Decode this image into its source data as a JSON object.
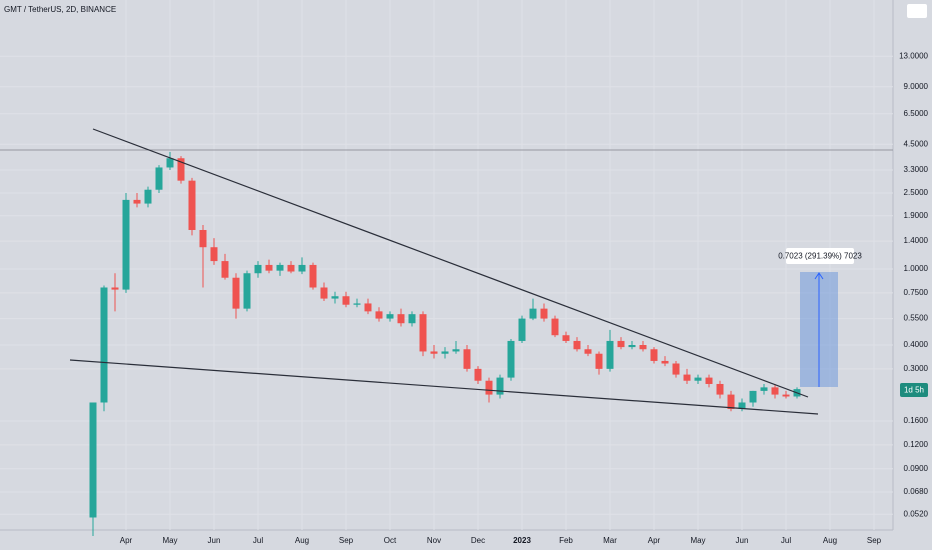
{
  "chart_data": {
    "type": "candlestick",
    "title": "GMT / TetherUS, 2D, BINANCE",
    "log_scale": true,
    "grid": true,
    "up_color": "#26a69a",
    "down_color": "#ef5350",
    "ylim": [
      0.043,
      25.6
    ],
    "yticks": [
      {
        "value": 13,
        "label": "13.0000"
      },
      {
        "value": 9,
        "label": "9.0000"
      },
      {
        "value": 6.5,
        "label": "6.5000"
      },
      {
        "value": 4.5,
        "label": "4.5000"
      },
      {
        "value": 3.3,
        "label": "3.3000"
      },
      {
        "value": 2.5,
        "label": "2.5000"
      },
      {
        "value": 1.9,
        "label": "1.9000"
      },
      {
        "value": 1.4,
        "label": "1.4000"
      },
      {
        "value": 1,
        "label": "1.0000"
      },
      {
        "value": 0.75,
        "label": "0.7500"
      },
      {
        "value": 0.55,
        "label": "0.5500"
      },
      {
        "value": 0.4,
        "label": "0.4000"
      },
      {
        "value": 0.3,
        "label": "0.3000"
      },
      {
        "value": 0.16,
        "label": "0.1600"
      },
      {
        "value": 0.12,
        "label": "0.1200"
      },
      {
        "value": 0.09,
        "label": "0.0900"
      },
      {
        "value": 0.068,
        "label": "0.0680"
      },
      {
        "value": 0.052,
        "label": "0.0520"
      }
    ],
    "categories": [
      null,
      null,
      null,
      "Apr",
      null,
      null,
      null,
      "May",
      null,
      null,
      null,
      "Jun",
      null,
      null,
      null,
      "Jul",
      null,
      null,
      null,
      "Aug",
      null,
      null,
      null,
      "Sep",
      null,
      null,
      null,
      "Oct",
      null,
      null,
      null,
      "Nov",
      null,
      null,
      null,
      "Dec",
      null,
      null,
      null,
      "2023",
      null,
      null,
      null,
      "Feb",
      null,
      null,
      null,
      "Mar",
      null,
      null,
      null,
      "Apr",
      null,
      null,
      null,
      "May",
      null,
      null,
      null,
      "Jun",
      null,
      null,
      null,
      "Jul",
      null,
      null,
      null,
      "Aug",
      null,
      null,
      null,
      "Sep"
    ],
    "open": [
      0.05,
      0.2,
      0.8,
      0.78,
      2.3,
      2.2,
      2.6,
      3.4,
      3.8,
      2.9,
      1.6,
      1.3,
      1.1,
      0.9,
      0.62,
      0.95,
      1.05,
      0.98,
      1.05,
      0.97,
      1.05,
      0.8,
      0.7,
      0.72,
      0.65,
      0.66,
      0.6,
      0.55,
      0.58,
      0.52,
      0.58,
      0.37,
      0.36,
      0.37,
      0.38,
      0.3,
      0.26,
      0.22,
      0.27,
      0.42,
      0.55,
      0.62,
      0.55,
      0.45,
      0.42,
      0.38,
      0.36,
      0.3,
      0.42,
      0.39,
      0.4,
      0.38,
      0.33,
      0.32,
      0.28,
      0.26,
      0.27,
      0.25,
      0.22,
      0.185,
      0.2,
      0.23,
      0.24,
      0.22,
      0.215,
      null,
      null,
      null,
      null,
      null,
      null,
      null
    ],
    "high": [
      0.2,
      0.82,
      0.95,
      2.5,
      2.5,
      2.7,
      3.5,
      4.1,
      3.9,
      3.0,
      1.7,
      1.45,
      1.2,
      0.95,
      0.98,
      1.1,
      1.12,
      1.08,
      1.1,
      1.15,
      1.08,
      0.85,
      0.76,
      0.76,
      0.7,
      0.7,
      0.63,
      0.6,
      0.62,
      0.6,
      0.6,
      0.4,
      0.39,
      0.42,
      0.4,
      0.31,
      0.27,
      0.28,
      0.43,
      0.57,
      0.7,
      0.66,
      0.57,
      0.47,
      0.44,
      0.4,
      0.37,
      0.48,
      0.44,
      0.42,
      0.42,
      0.39,
      0.35,
      0.33,
      0.3,
      0.28,
      0.28,
      0.26,
      0.23,
      0.21,
      0.23,
      0.25,
      0.25,
      0.23,
      0.24,
      null,
      null,
      null,
      null,
      null,
      null,
      null
    ],
    "low": [
      0.04,
      0.18,
      0.6,
      0.75,
      2.1,
      2.1,
      2.5,
      3.3,
      2.8,
      1.5,
      0.8,
      1.05,
      0.88,
      0.55,
      0.6,
      0.9,
      0.95,
      0.92,
      0.95,
      0.94,
      0.78,
      0.68,
      0.66,
      0.63,
      0.63,
      0.58,
      0.53,
      0.53,
      0.5,
      0.5,
      0.35,
      0.34,
      0.34,
      0.36,
      0.29,
      0.25,
      0.2,
      0.21,
      0.26,
      0.41,
      0.54,
      0.53,
      0.44,
      0.41,
      0.37,
      0.35,
      0.28,
      0.29,
      0.38,
      0.38,
      0.37,
      0.32,
      0.31,
      0.27,
      0.25,
      0.25,
      0.24,
      0.21,
      0.18,
      0.18,
      0.19,
      0.22,
      0.21,
      0.21,
      0.21,
      null,
      null,
      null,
      null,
      null,
      null,
      null
    ],
    "close": [
      0.2,
      0.8,
      0.78,
      2.3,
      2.2,
      2.6,
      3.4,
      3.8,
      2.9,
      1.6,
      1.3,
      1.1,
      0.9,
      0.62,
      0.95,
      1.05,
      0.98,
      1.05,
      0.97,
      1.05,
      0.8,
      0.7,
      0.72,
      0.65,
      0.66,
      0.6,
      0.55,
      0.58,
      0.52,
      0.58,
      0.37,
      0.36,
      0.37,
      0.38,
      0.3,
      0.26,
      0.22,
      0.27,
      0.42,
      0.55,
      0.62,
      0.55,
      0.45,
      0.42,
      0.38,
      0.36,
      0.3,
      0.42,
      0.39,
      0.4,
      0.38,
      0.33,
      0.32,
      0.28,
      0.26,
      0.27,
      0.25,
      0.22,
      0.185,
      0.2,
      0.23,
      0.24,
      0.22,
      0.215,
      0.235,
      null,
      null,
      null,
      null,
      null,
      null,
      null
    ],
    "measure_label": "0.7023 (291.39%) 7023",
    "countdown": "1d 5h"
  }
}
